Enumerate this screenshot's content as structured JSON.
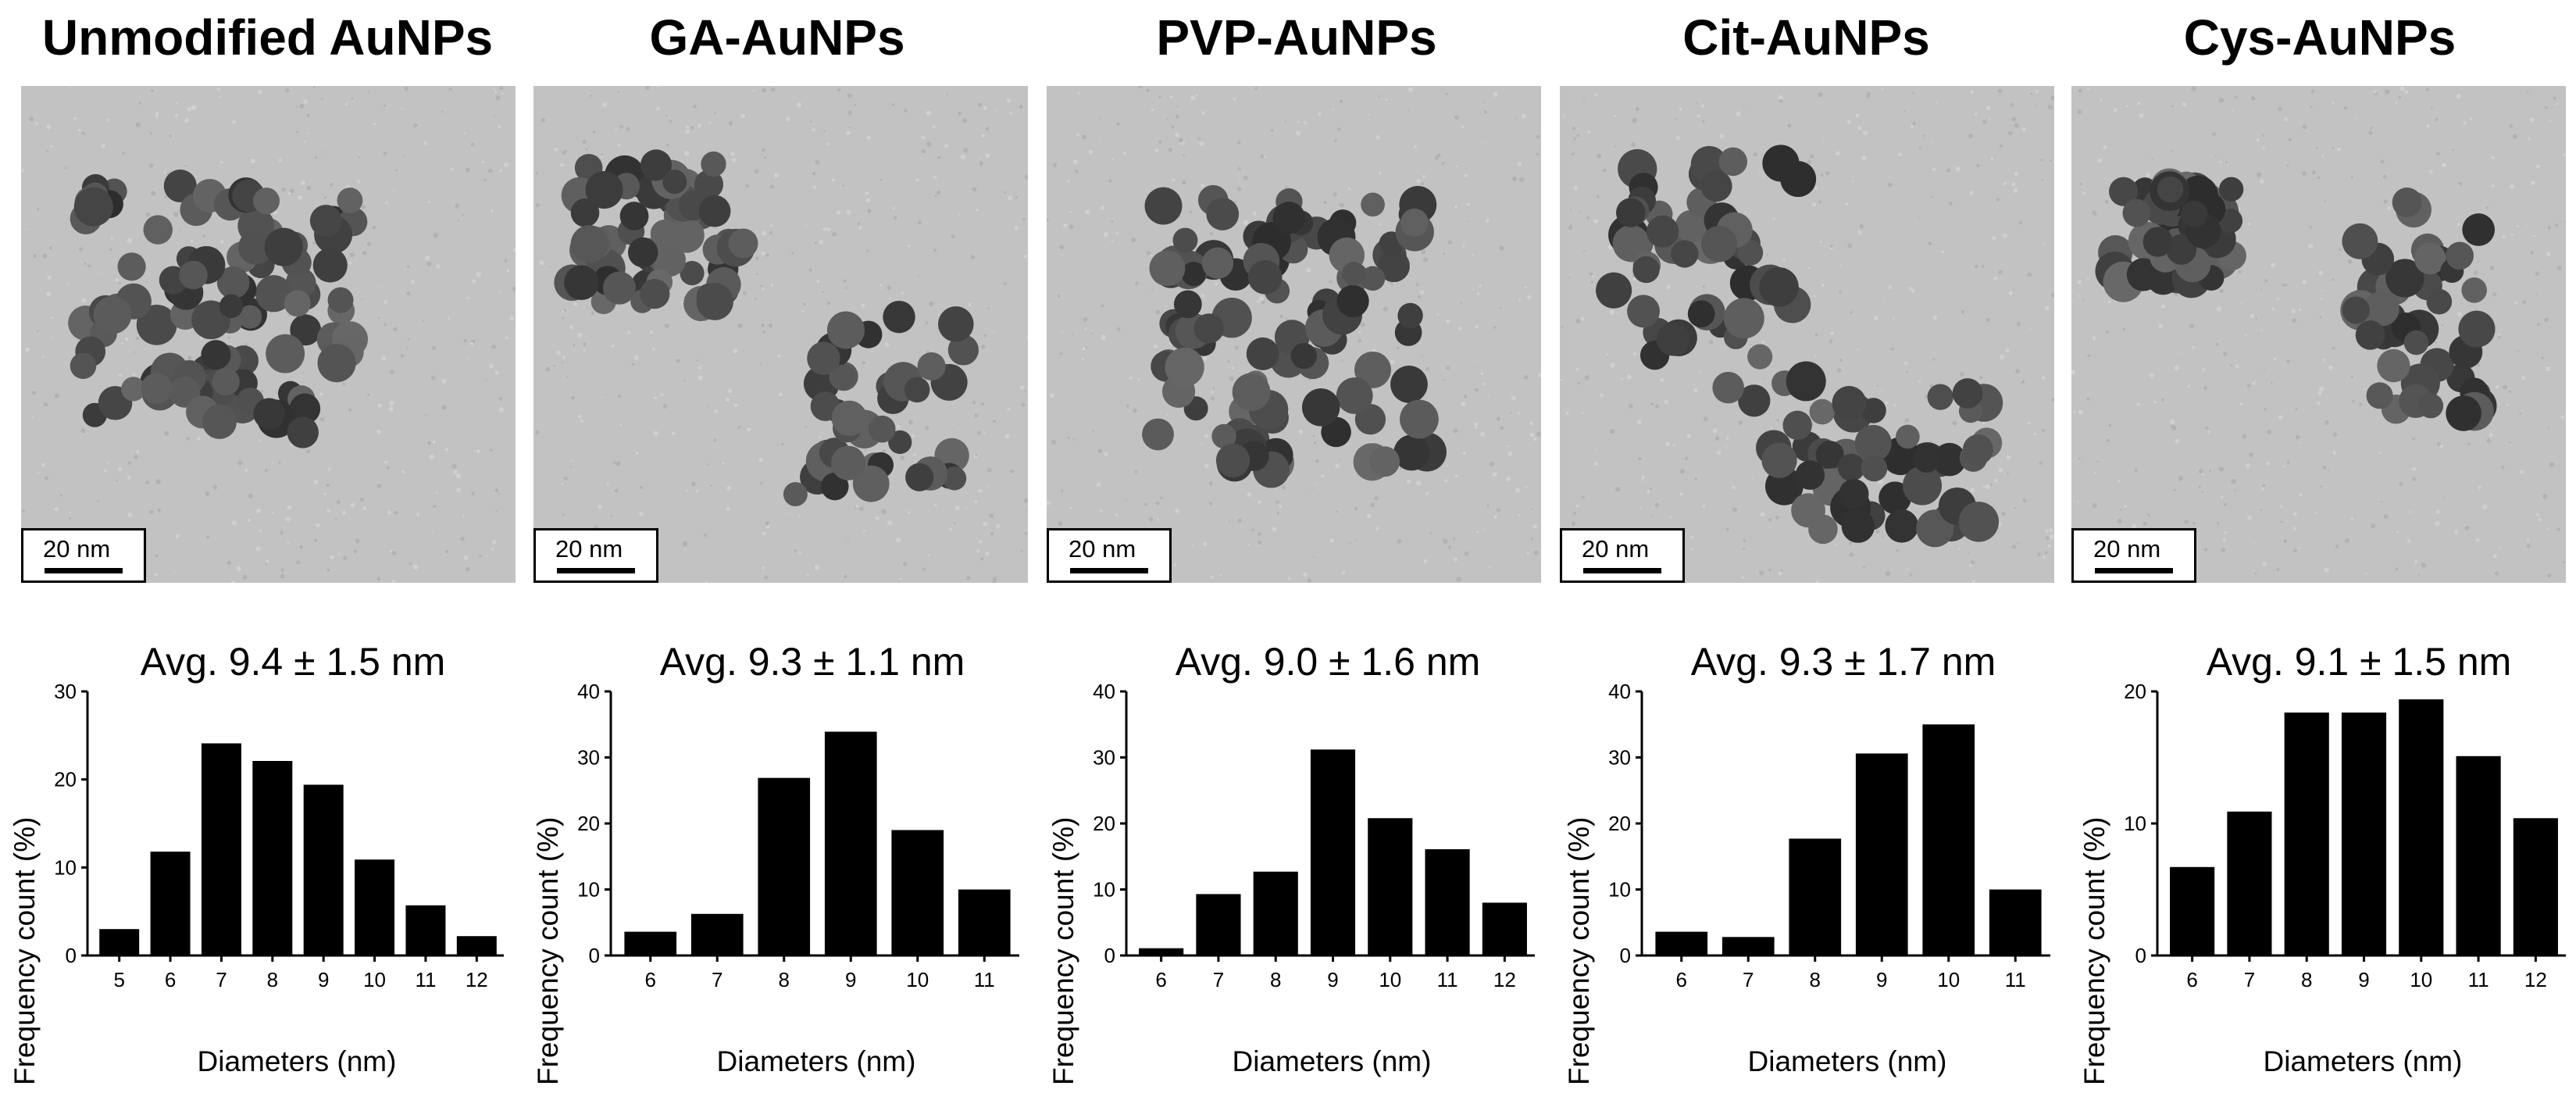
{
  "panels": [
    {
      "title": "Unmodified AuNPs",
      "scale": "20 nm",
      "avg": "Avg. 9.4 ± 1.5 nm"
    },
    {
      "title": "GA-AuNPs",
      "scale": "20 nm",
      "avg": "Avg. 9.3 ± 1.1 nm"
    },
    {
      "title": "PVP-AuNPs",
      "scale": "20 nm",
      "avg": "Avg. 9.0 ± 1.6 nm"
    },
    {
      "title": "Cit-AuNPs",
      "scale": "20 nm",
      "avg": "Avg. 9.3 ± 1.7 nm"
    },
    {
      "title": "Cys-AuNPs",
      "scale": "20 nm",
      "avg": "Avg. 9.1 ± 1.5 nm"
    }
  ],
  "chart_data": [
    {
      "type": "bar",
      "title": "Avg. 9.4 ± 1.5 nm",
      "xlabel": "Diameters (nm)",
      "ylabel": "Frequency count (%)",
      "categories": [
        "5",
        "6",
        "7",
        "8",
        "9",
        "10",
        "11",
        "12"
      ],
      "values": [
        3,
        11.8,
        24.1,
        22.1,
        19.4,
        10.9,
        5.7,
        2.2
      ],
      "ylim": [
        0,
        30
      ],
      "yticks": [
        0,
        10,
        20,
        30
      ]
    },
    {
      "type": "bar",
      "title": "Avg. 9.3 ± 1.1 nm",
      "xlabel": "Diameters (nm)",
      "ylabel": "Frequency count (%)",
      "categories": [
        "6",
        "7",
        "8",
        "9",
        "10",
        "11"
      ],
      "values": [
        3.6,
        6.3,
        26.9,
        33.9,
        19,
        10
      ],
      "ylim": [
        0,
        40
      ],
      "yticks": [
        0,
        10,
        20,
        30,
        40
      ]
    },
    {
      "type": "bar",
      "title": "Avg. 9.0 ± 1.6 nm",
      "xlabel": "Diameters (nm)",
      "ylabel": "Frequency count (%)",
      "categories": [
        "6",
        "7",
        "8",
        "9",
        "10",
        "11",
        "12"
      ],
      "values": [
        1.1,
        9.3,
        12.7,
        31.2,
        20.8,
        16.1,
        8
      ],
      "ylim": [
        0,
        40
      ],
      "yticks": [
        0,
        10,
        20,
        30,
        40
      ]
    },
    {
      "type": "bar",
      "title": "Avg. 9.3 ± 1.7 nm",
      "xlabel": "Diameters (nm)",
      "ylabel": "Frequency count (%)",
      "categories": [
        "6",
        "7",
        "8",
        "9",
        "10",
        "11"
      ],
      "values": [
        3.6,
        2.8,
        17.7,
        30.6,
        35,
        10
      ],
      "ylim": [
        0,
        40
      ],
      "yticks": [
        0,
        10,
        20,
        30,
        40
      ]
    },
    {
      "type": "bar",
      "title": "Avg. 9.1 ± 1.5 nm",
      "xlabel": "Diameters (nm)",
      "ylabel": "Frequency count (%)",
      "categories": [
        "6",
        "7",
        "8",
        "9",
        "10",
        "11",
        "12"
      ],
      "values": [
        6.7,
        10.9,
        18.4,
        18.4,
        19.4,
        15.1,
        10.4
      ],
      "ylim": [
        0,
        20
      ],
      "yticks": [
        0,
        10,
        20
      ]
    }
  ]
}
